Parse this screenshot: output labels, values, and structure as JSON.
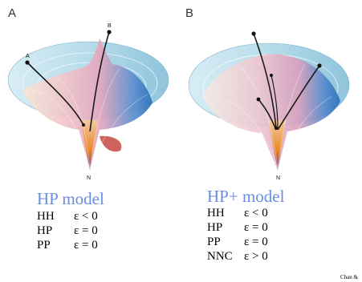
{
  "panel_a": {
    "letter": "A",
    "title": "HP model",
    "point_labels": [
      "A",
      "B",
      "N"
    ],
    "rules": [
      {
        "pair": "HH",
        "energy": "ε < 0"
      },
      {
        "pair": "HP",
        "energy": "ε = 0"
      },
      {
        "pair": "PP",
        "energy": "ε = 0"
      }
    ]
  },
  "panel_b": {
    "letter": "B",
    "title": "HP+ model",
    "point_labels": [
      "N"
    ],
    "rules": [
      {
        "pair": "HH",
        "energy": "ε < 0"
      },
      {
        "pair": "HP",
        "energy": "ε = 0"
      },
      {
        "pair": "PP",
        "energy": "ε = 0"
      },
      {
        "pair": "NNC",
        "energy": "ε > 0"
      }
    ]
  },
  "credit": "Chan &",
  "colors": {
    "title_blue": "#6a8de0",
    "funnel_rim": "#a9d3e6",
    "funnel_pink": "#e9a3b8",
    "funnel_blue": "#2a6fb8",
    "funnel_orange": "#e8892a"
  }
}
